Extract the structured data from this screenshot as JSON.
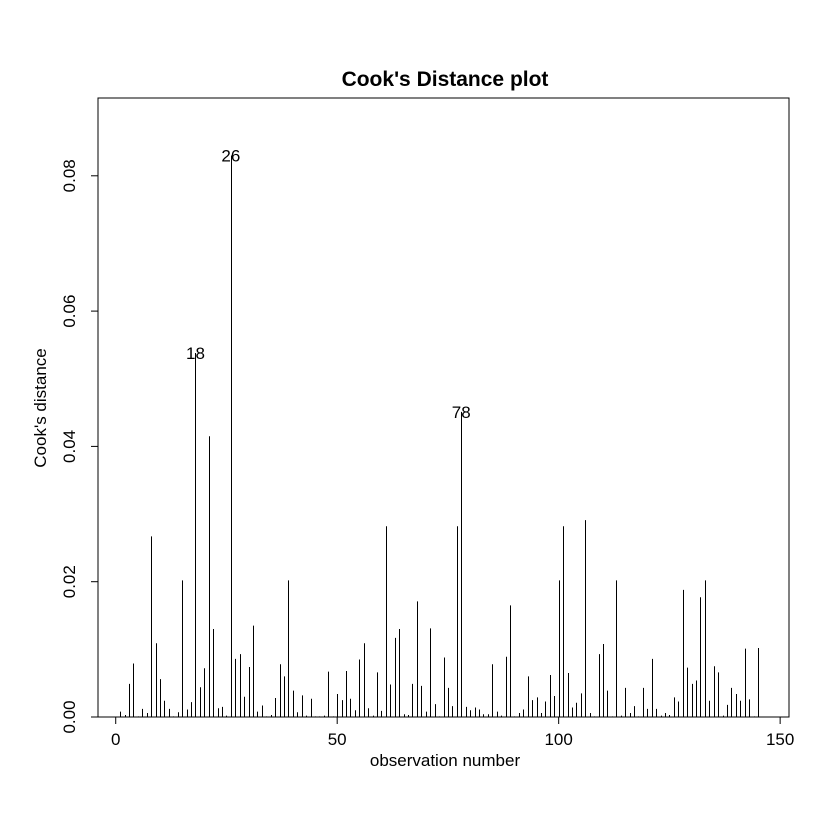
{
  "chart_data": {
    "type": "bar",
    "title": "Cook's Distance plot",
    "xlabel": "observation number",
    "ylabel": "Cook's distance",
    "xlim": [
      -4,
      152
    ],
    "ylim": [
      0,
      0.0915
    ],
    "xticks": [
      "0",
      "50",
      "100",
      "150"
    ],
    "xtick_values": [
      0,
      50,
      100,
      150
    ],
    "yticks": [
      "0.00",
      "0.02",
      "0.04",
      "0.06",
      "0.08"
    ],
    "ytick_values": [
      0,
      0.02,
      0.04,
      0.06,
      0.08
    ],
    "grid": false,
    "legend": "none",
    "labeled_points": [
      {
        "x": 18,
        "label": "18"
      },
      {
        "x": 26,
        "label": "26"
      },
      {
        "x": 78,
        "label": "78"
      }
    ],
    "x": [
      1,
      2,
      3,
      4,
      5,
      6,
      7,
      8,
      9,
      10,
      11,
      12,
      13,
      14,
      15,
      16,
      17,
      18,
      19,
      20,
      21,
      22,
      23,
      24,
      25,
      26,
      27,
      28,
      29,
      30,
      31,
      32,
      33,
      34,
      35,
      36,
      37,
      38,
      39,
      40,
      41,
      42,
      43,
      44,
      45,
      46,
      47,
      48,
      49,
      50,
      51,
      52,
      53,
      54,
      55,
      56,
      57,
      58,
      59,
      60,
      61,
      62,
      63,
      64,
      65,
      66,
      67,
      68,
      69,
      70,
      71,
      72,
      73,
      74,
      75,
      76,
      77,
      78,
      79,
      80,
      81,
      82,
      83,
      84,
      85,
      86,
      87,
      88,
      89,
      90,
      91,
      92,
      93,
      94,
      95,
      96,
      97,
      98,
      99,
      100,
      101,
      102,
      103,
      104,
      105,
      106,
      107,
      108,
      109,
      110,
      111,
      112,
      113,
      114,
      115,
      116,
      117,
      118,
      119,
      120,
      121,
      122,
      123,
      124,
      125,
      126,
      127,
      128,
      129,
      130,
      131,
      132,
      133,
      134,
      135,
      136,
      137,
      138,
      139,
      140,
      141,
      142,
      143,
      144,
      145
    ],
    "values": [
      0.0008,
      0.0003,
      0.0049,
      0.0079,
      0.0001,
      0.0012,
      0.0006,
      0.0267,
      0.0109,
      0.0056,
      0.0024,
      0.0012,
      0.0001,
      0.0007,
      0.0202,
      0.0011,
      0.0022,
      0.0538,
      0.0044,
      0.0072,
      0.0415,
      0.013,
      0.0013,
      0.0015,
      0.0002,
      0.083,
      0.0086,
      0.0093,
      0.003,
      0.0074,
      0.0135,
      0.0008,
      0.0017,
      0.0001,
      0.0003,
      0.0028,
      0.0078,
      0.006,
      0.0202,
      0.0039,
      0.0007,
      0.0032,
      0.0002,
      0.0027,
      0.0001,
      0.0001,
      0.0002,
      0.0067,
      0.0001,
      0.0034,
      0.0025,
      0.0068,
      0.0027,
      0.001,
      0.0085,
      0.0109,
      0.0013,
      0.0002,
      0.0066,
      0.0009,
      0.0282,
      0.0048,
      0.0117,
      0.013,
      0.0004,
      0.0003,
      0.0049,
      0.0171,
      0.0046,
      0.0008,
      0.0131,
      0.0019,
      0.0001,
      0.0088,
      0.0043,
      0.0016,
      0.0282,
      0.0451,
      0.0015,
      0.001,
      0.0014,
      0.0011,
      0.0004,
      0.0004,
      0.0078,
      0.0008,
      0.0002,
      0.0089,
      0.0165,
      0.0001,
      0.0006,
      0.0011,
      0.006,
      0.0025,
      0.0029,
      0.0006,
      0.0023,
      0.0062,
      0.0031,
      0.0202,
      0.0282,
      0.0065,
      0.0014,
      0.0021,
      0.0035,
      0.0291,
      0.0006,
      0.0001,
      0.0093,
      0.0108,
      0.0039,
      0.0001,
      0.0202,
      0.0002,
      0.0043,
      0.0006,
      0.0016,
      0.0001,
      0.0043,
      0.0012,
      0.0086,
      0.0012,
      0.0002,
      0.0006,
      0.0003,
      0.0029,
      0.0023,
      0.0188,
      0.0073,
      0.0049,
      0.0054,
      0.0177,
      0.0202,
      0.0024,
      0.0075,
      0.0066,
      0.0002,
      0.0018,
      0.0043,
      0.0034,
      0.0024,
      0.0101,
      0.0026,
      0.0001,
      0.0102
    ]
  }
}
